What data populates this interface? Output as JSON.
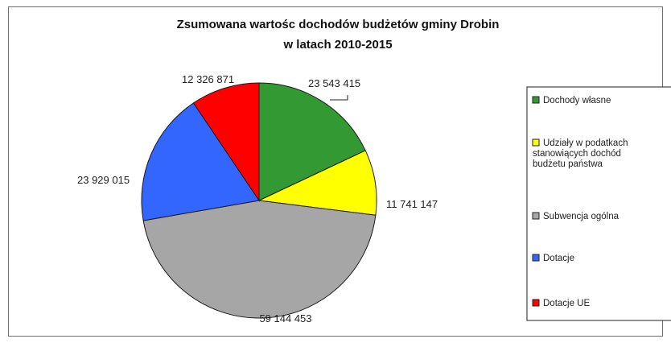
{
  "chart_data": {
    "type": "pie",
    "title": "Zsumowana wartośc dochodów budżetów gminy Drobin",
    "subtitle": "w latach 2010-2015",
    "categories": [
      "Dochody własne",
      "Udziały w podatkach stanowiących dochód budżetu państwa",
      "Subwencja ogólna",
      "Dotacje",
      "Dotacje UE"
    ],
    "values": [
      23543415,
      11741147,
      59144453,
      23929015,
      12326871
    ],
    "value_labels": [
      "23 543 415",
      "11 741 147",
      "59 144 453",
      "23 929 015",
      "12 326 871"
    ],
    "colors": [
      "#339933",
      "#ffff00",
      "#a6a6a6",
      "#3366ff",
      "#ff0000"
    ],
    "legend": {
      "placement": "right",
      "entries": [
        {
          "lines": [
            "Dochody własne"
          ]
        },
        {
          "lines": [
            "Udziały  w podatkach",
            "stanowiących dochód",
            "budżetu państwa"
          ]
        },
        {
          "lines": [
            "Subwencja ogólna"
          ]
        },
        {
          "lines": [
            "Dotacje"
          ]
        },
        {
          "lines": [
            "Dotacje UE"
          ]
        }
      ]
    }
  }
}
